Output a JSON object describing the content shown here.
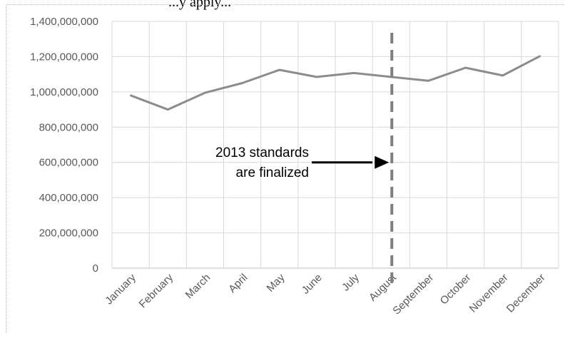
{
  "page": {
    "top_text": "...y apply..."
  },
  "chart_data": {
    "type": "line",
    "title": "",
    "xlabel": "",
    "ylabel": "",
    "categories": [
      "January",
      "February",
      "March",
      "April",
      "May",
      "June",
      "July",
      "August",
      "September",
      "October",
      "November",
      "December"
    ],
    "series": [
      {
        "values": [
          980000000,
          900000000,
          995000000,
          1050000000,
          1125000000,
          1085000000,
          1107000000,
          1085000000,
          1063000000,
          1137000000,
          1093000000,
          1203000000
        ]
      }
    ],
    "ylim": [
      0,
      1400000000
    ],
    "y_ticks": [
      0,
      200000000,
      400000000,
      600000000,
      800000000,
      1000000000,
      1200000000,
      1400000000
    ],
    "y_tick_labels": [
      "0",
      "200,000,000",
      "400,000,000",
      "600,000,000",
      "800,000,000",
      "1,000,000,000",
      "1,200,000,000",
      "1,400,000,000"
    ],
    "grid": true,
    "colors": {
      "line": "#8c8c8c",
      "grid": "#d9d9d9",
      "marker": "#7f7f7f",
      "arrow": "#000000"
    },
    "annotation": {
      "line1": "2013 standards",
      "line2": "are finalized",
      "marker_category": "August",
      "arrow_y_value": 600000000,
      "marker_style": "dashed-vertical"
    }
  }
}
